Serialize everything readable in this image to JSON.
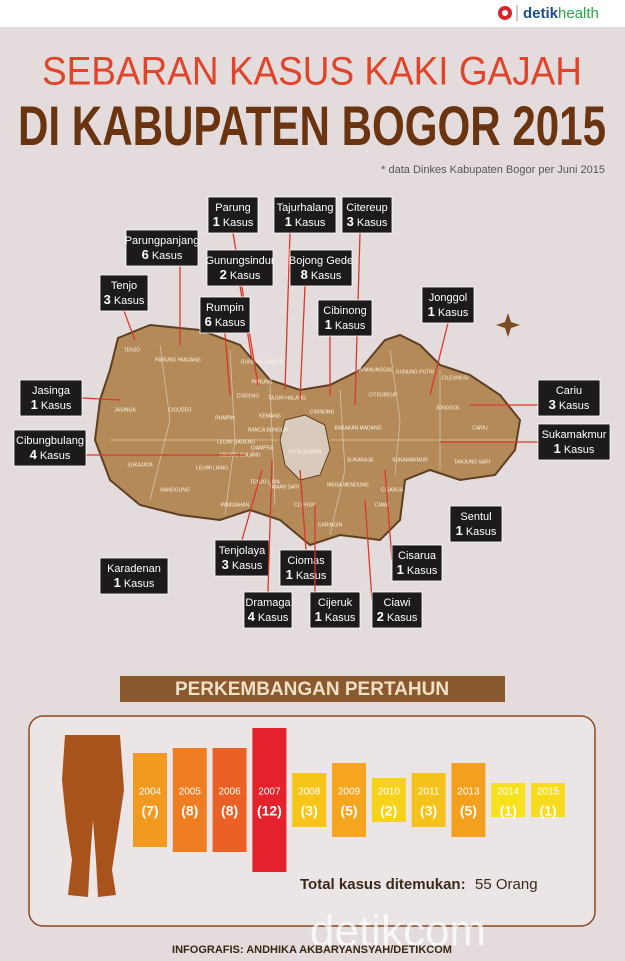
{
  "header": {
    "logo_prefix": "detik",
    "logo_suffix": "health",
    "title_line1": "SEBARAN KASUS KAKI GAJAH",
    "title_line2": "DI KABUPATEN BOGOR 2015",
    "note": "* data Dinkes Kabupaten Bogor per Juni 2015"
  },
  "map": {
    "callouts": [
      {
        "name": "Parung",
        "count": 1,
        "unit": "Kasus"
      },
      {
        "name": "Tajurhalang",
        "count": 1,
        "unit": "Kasus"
      },
      {
        "name": "Citereup",
        "count": 3,
        "unit": "Kasus"
      },
      {
        "name": "Parungpanjang",
        "count": 6,
        "unit": "Kasus"
      },
      {
        "name": "Gunungsindur",
        "count": 2,
        "unit": "Kasus"
      },
      {
        "name": "Bojong Gede",
        "count": 8,
        "unit": "Kasus"
      },
      {
        "name": "Tenjo",
        "count": 3,
        "unit": "Kasus"
      },
      {
        "name": "Rumpin",
        "count": 6,
        "unit": "Kasus"
      },
      {
        "name": "Cibinong",
        "count": 1,
        "unit": "Kasus"
      },
      {
        "name": "Jonggol",
        "count": 1,
        "unit": "Kasus"
      },
      {
        "name": "Jasinga",
        "count": 1,
        "unit": "Kasus"
      },
      {
        "name": "Cibungbulang",
        "count": 4,
        "unit": "Kasus"
      },
      {
        "name": "Cariu",
        "count": 3,
        "unit": "Kasus"
      },
      {
        "name": "Sukamakmur",
        "count": 1,
        "unit": "Kasus"
      },
      {
        "name": "Sentul",
        "count": 1,
        "unit": "Kasus"
      },
      {
        "name": "Karadenan",
        "count": 1,
        "unit": "Kasus"
      },
      {
        "name": "Tenjolaya",
        "count": 3,
        "unit": "Kasus"
      },
      {
        "name": "Ciomas",
        "count": 1,
        "unit": "Kasus"
      },
      {
        "name": "Cisarua",
        "count": 1,
        "unit": "Kasus"
      },
      {
        "name": "Dramaga",
        "count": 4,
        "unit": "Kasus"
      },
      {
        "name": "Cijeruk",
        "count": 1,
        "unit": "Kasus"
      },
      {
        "name": "Ciawi",
        "count": 2,
        "unit": "Kasus"
      }
    ],
    "places": [
      "TENJO",
      "PARUNG PANJANG",
      "JASINGA",
      "CIGUDEG",
      "RUMPIN",
      "GUNUNG SINDUR",
      "PARUNG",
      "CISEENG",
      "TAJUR HALANG",
      "CIBINONG",
      "KEMANG",
      "RANCA BUNGUR",
      "LEUWI SADENG",
      "LEUWI LIANG",
      "CIBUNG BULANG",
      "CIAMPEA",
      "SUKAJAYA",
      "NANGGUNG",
      "PAMIJAHAN",
      "TENJO LAYA",
      "TAMAN SARI",
      "CIJERUK",
      "CARINGIN",
      "CIAWI",
      "CISARUA",
      "MEGA MENDUNG",
      "SUKARAJA",
      "BABAKAN MADANG",
      "CITEUREUP",
      "KLAPANUNGGAL",
      "GUNUNG PUTRI",
      "CILEUNGSI",
      "JONGGOL",
      "CARIU",
      "SUKAMAKMUR",
      "TANJUNG SARI",
      "KOTA BOGOR"
    ]
  },
  "chart_data": {
    "type": "bar",
    "title": "PERKEMBANGAN PERTAHUN",
    "categories": [
      "2004",
      "2005",
      "2006",
      "2007",
      "2008",
      "2009",
      "2010",
      "2011",
      "2013",
      "2014",
      "2015"
    ],
    "values": [
      7,
      8,
      8,
      12,
      3,
      5,
      2,
      3,
      5,
      1,
      1
    ],
    "value_labels": [
      "(7)",
      "(8)",
      "(8)",
      "(12)",
      "(3)",
      "(5)",
      "(2)",
      "(3)",
      "(5)",
      "(1)",
      "(1)"
    ],
    "colors": [
      "#f29a1f",
      "#ef7d22",
      "#eb6125",
      "#e3222b",
      "#f7c51a",
      "#f5a51f",
      "#f6d31a",
      "#f5c21b",
      "#f3a01f",
      "#f7e11c",
      "#f6dc1d"
    ],
    "total_label": "Total kasus ditemukan:",
    "total_value": "55 Orang"
  },
  "footer": {
    "credit": "INFOGRAFIS: ANDHIKA AKBARYANSYAH/DETIKCOM",
    "watermark": "detikcom"
  }
}
